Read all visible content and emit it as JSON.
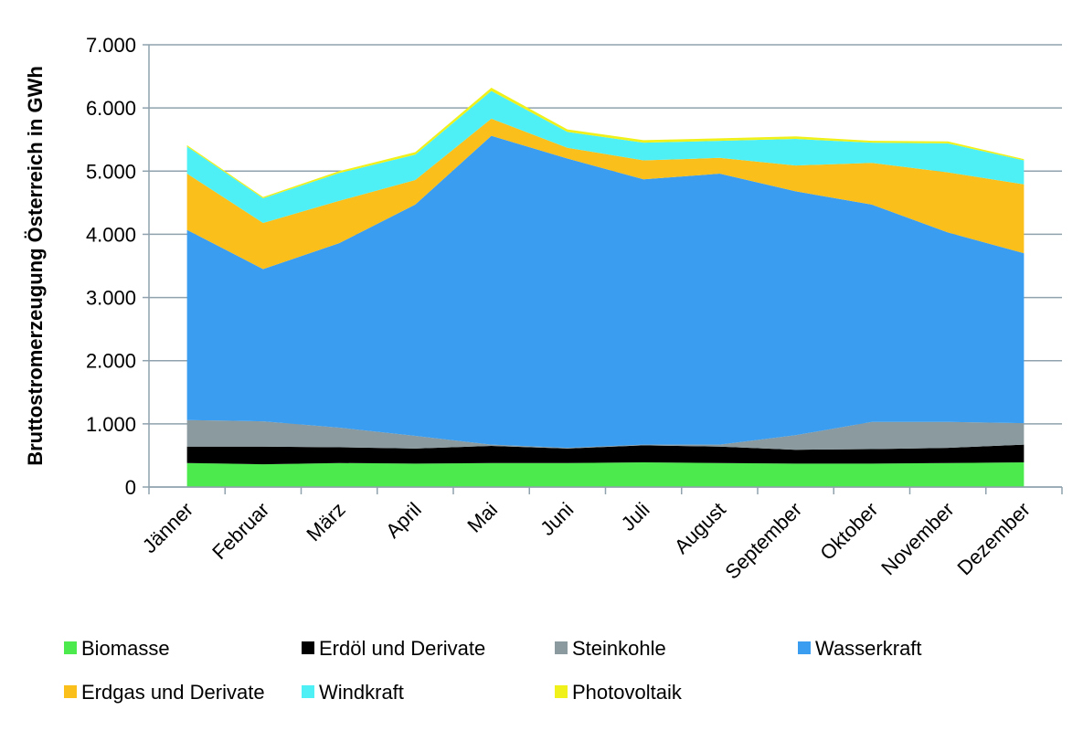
{
  "chart_data": {
    "type": "stacked_area",
    "y_label": "Bruttostromerzeugung Österreich in GWh",
    "categories": [
      "Jänner",
      "Februar",
      "März",
      "April",
      "Mai",
      "Juni",
      "Juli",
      "August",
      "September",
      "Oktober",
      "November",
      "Dezember"
    ],
    "series": [
      {
        "name": "Biomasse",
        "color": "#4cea4c",
        "values": [
          380,
          360,
          380,
          370,
          380,
          380,
          390,
          380,
          370,
          370,
          380,
          390
        ]
      },
      {
        "name": "Erdöl und Derivate",
        "color": "#000000",
        "values": [
          260,
          280,
          250,
          240,
          270,
          230,
          270,
          260,
          220,
          230,
          240,
          280
        ]
      },
      {
        "name": "Steinkohle",
        "color": "#8a9a9e",
        "values": [
          420,
          400,
          310,
          200,
          20,
          10,
          10,
          30,
          230,
          430,
          410,
          340
        ]
      },
      {
        "name": "Wasserkraft",
        "color": "#3a9df0",
        "values": [
          3010,
          2410,
          2920,
          3660,
          4890,
          4580,
          4200,
          4290,
          3860,
          3440,
          3000,
          2690
        ]
      },
      {
        "name": "Erdgas und Derivate",
        "color": "#fbbf1b",
        "values": [
          890,
          730,
          670,
          390,
          270,
          170,
          300,
          250,
          410,
          660,
          950,
          1090
        ]
      },
      {
        "name": "Windkraft",
        "color": "#4ff0f5",
        "values": [
          430,
          390,
          440,
          400,
          440,
          250,
          280,
          270,
          420,
          320,
          460,
          380
        ]
      },
      {
        "name": "Photovoltaik",
        "color": "#f0f01a",
        "values": [
          20,
          20,
          30,
          40,
          50,
          40,
          40,
          40,
          40,
          30,
          30,
          20
        ]
      }
    ],
    "ylim": [
      0,
      7000
    ],
    "yticks": [
      0,
      {
        "value": 1000,
        "label": "1.000"
      },
      {
        "value": 2000,
        "label": "2.000"
      },
      {
        "value": 3000,
        "label": "3.000"
      },
      {
        "value": 4000,
        "label": "4.000"
      },
      {
        "value": 5000,
        "label": "5.000"
      },
      {
        "value": 6000,
        "label": "6.000"
      },
      {
        "value": 7000,
        "label": "7.000"
      }
    ],
    "grid": true
  }
}
